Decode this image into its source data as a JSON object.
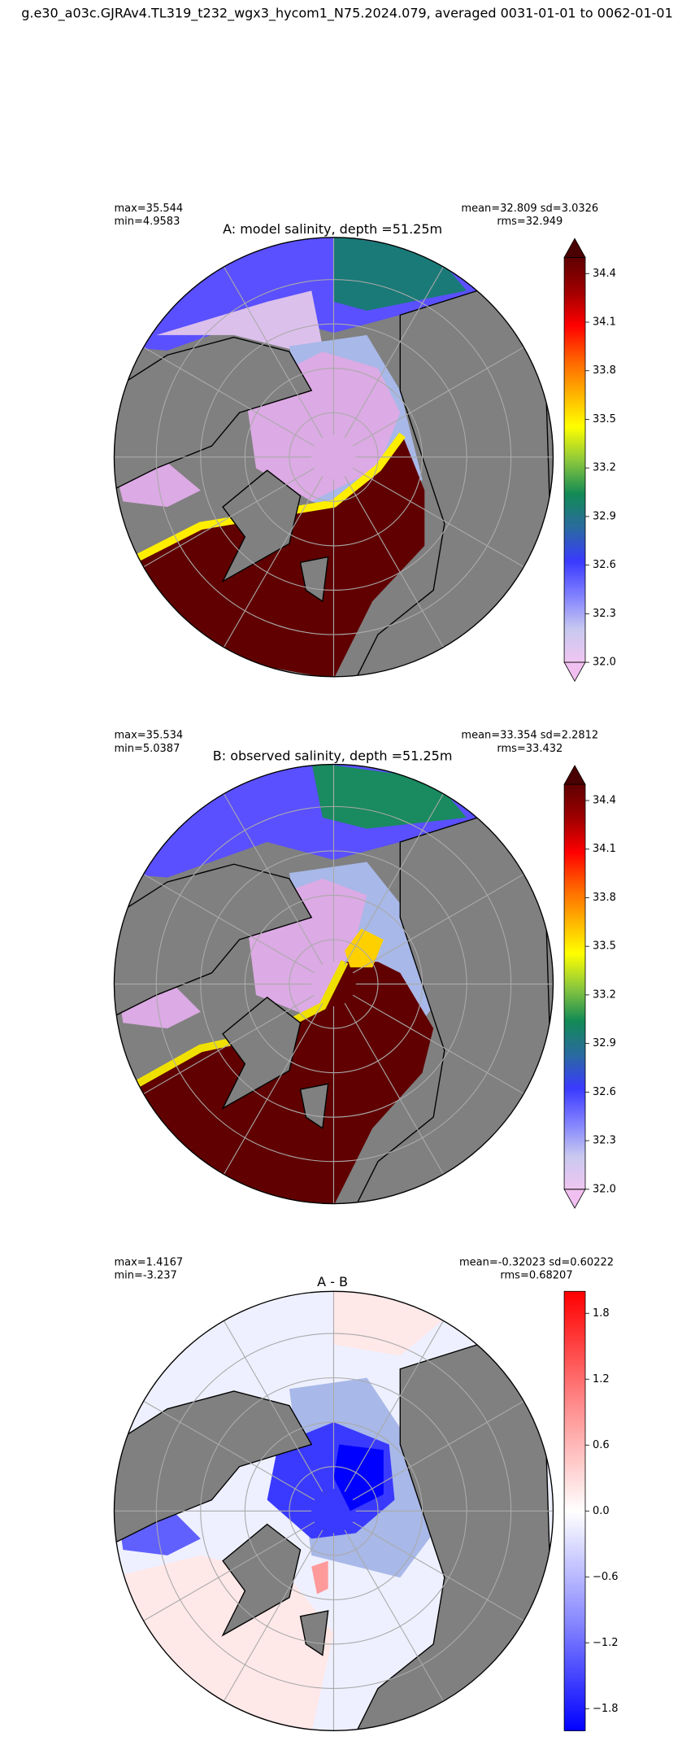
{
  "suptitle": "g.e30_a03c.GJRAv4.TL319_t232_wgx3_hycom1_N75.2024.079, averaged 0031-01-01 to 0062-01-01",
  "chart_data": [
    {
      "type": "map",
      "variant": "model",
      "title": "A: model salinity, depth =51.25m",
      "stats_left": [
        "max=35.544",
        "min=4.9583"
      ],
      "stats_right": [
        "mean=32.809 sd=3.0326",
        "rms=32.949"
      ],
      "colorbar": {
        "cmap": "salinity",
        "extend": "both",
        "lim": [
          32.0,
          34.5
        ],
        "ticks": [
          {
            "value": 32.0,
            "label": "32.0"
          },
          32.3,
          32.6,
          32.9,
          33.2,
          33.5,
          33.8,
          34.1,
          34.4
        ]
      }
    },
    {
      "type": "map",
      "variant": "observed",
      "title": "B: observed salinity, depth =51.25m",
      "stats_left": [
        "max=35.534",
        "min=5.0387"
      ],
      "stats_right": [
        "mean=33.354 sd=2.2812",
        "rms=33.432"
      ],
      "colorbar": {
        "cmap": "salinity",
        "extend": "both",
        "lim": [
          32.0,
          34.5
        ],
        "ticks": [
          {
            "value": 32.0,
            "label": "32.0"
          },
          32.3,
          32.6,
          32.9,
          33.2,
          33.5,
          33.8,
          34.1,
          34.4
        ]
      }
    },
    {
      "type": "map",
      "variant": "difference",
      "title": "A - B",
      "stats_left": [
        "max=1.4167",
        "min=-3.237"
      ],
      "stats_right": [
        "mean=-0.32023 sd=0.60222",
        "rms=0.68207"
      ],
      "colorbar": {
        "cmap": "diff",
        "extend": "neither",
        "lim": [
          -2.0,
          2.0
        ],
        "ticks": [
          {
            "value": -1.8,
            "label": "−1.8"
          },
          {
            "value": -1.2,
            "label": "−1.2"
          },
          {
            "value": -0.6,
            "label": "−0.6"
          },
          {
            "value": 0.0,
            "label": "0.0"
          },
          0.6,
          1.2,
          1.8
        ]
      }
    }
  ]
}
